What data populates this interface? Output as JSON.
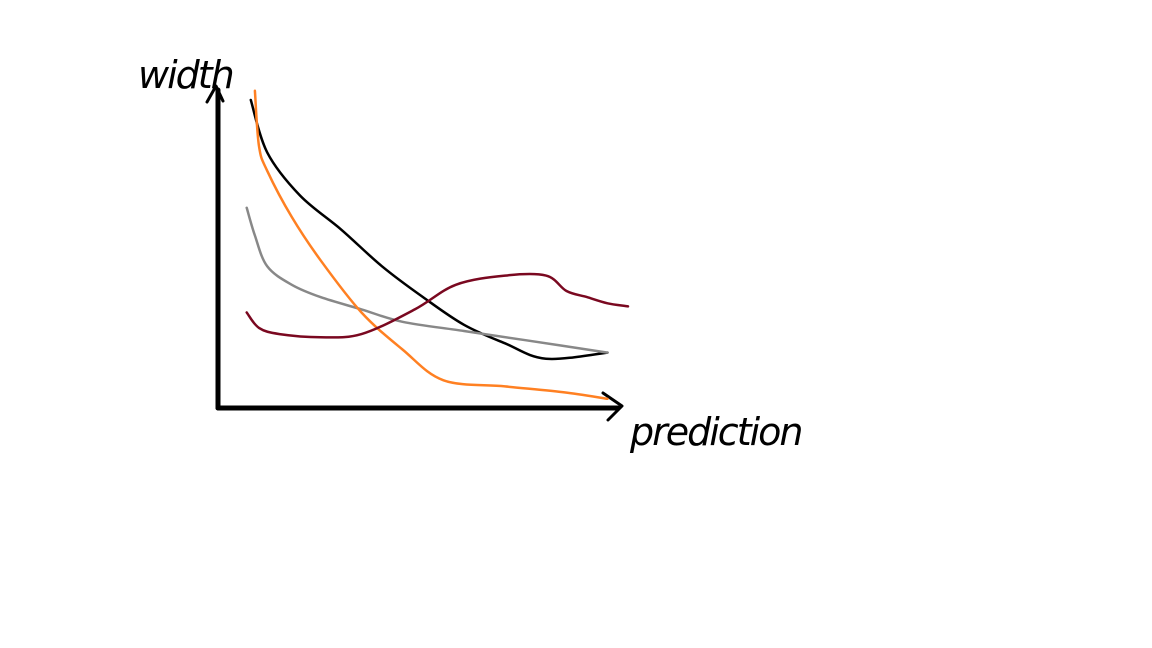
{
  "chart_data": {
    "type": "line",
    "title": "",
    "xlabel": "prediction",
    "ylabel": "width",
    "xlim": [
      0,
      100
    ],
    "ylim": [
      0,
      100
    ],
    "grid": false,
    "legend": "none",
    "ticks": "none",
    "series": [
      {
        "color": "#000000",
        "x": [
          8,
          12,
          20,
          30,
          40,
          50,
          60,
          70,
          80,
          95
        ],
        "y": [
          100,
          83,
          69,
          58,
          46,
          36,
          27,
          21,
          16,
          18
        ]
      },
      {
        "color": "#888888",
        "x": [
          7,
          9,
          12,
          18,
          25,
          35,
          45,
          60,
          75,
          95
        ],
        "y": [
          65,
          56,
          46,
          40,
          36,
          32,
          28,
          25,
          22,
          18
        ]
      },
      {
        "color": "#ff8022",
        "x": [
          9,
          10,
          12,
          18,
          25,
          35,
          45,
          55,
          70,
          85,
          95
        ],
        "y": [
          103,
          85,
          77,
          62,
          48,
          31,
          19,
          9,
          7,
          5,
          3
        ]
      },
      {
        "color": "#7a0820",
        "x": [
          7,
          10,
          15,
          25,
          35,
          48,
          58,
          70,
          80,
          85,
          90,
          95,
          100
        ],
        "y": [
          31,
          26,
          24,
          23,
          24,
          32,
          40,
          43,
          43,
          38,
          36,
          34,
          33
        ]
      }
    ]
  }
}
